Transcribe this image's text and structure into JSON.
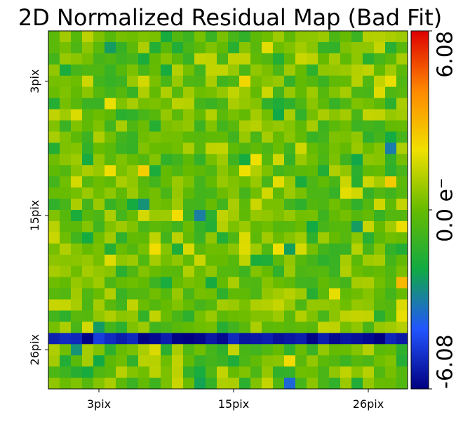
{
  "chart_data": {
    "type": "heatmap",
    "title": "2D Normalized Residual Map (Bad Fit)",
    "grid_size": [
      32,
      32
    ],
    "x_ticks": [
      {
        "pos": 4,
        "label": "3pix"
      },
      {
        "pos": 16,
        "label": "15pix"
      },
      {
        "pos": 28,
        "label": "26pix"
      }
    ],
    "y_ticks": [
      {
        "pos": 4,
        "label": "3pix"
      },
      {
        "pos": 16,
        "label": "15pix"
      },
      {
        "pos": 28,
        "label": "26pix"
      }
    ],
    "colorbar": {
      "vmin": -6.08,
      "vmax": 6.08,
      "label_min": "-6.08",
      "label_max": "6.08",
      "label_mid": "0.0 e⁻",
      "colors": [
        "#000080",
        "#2255ff",
        "#11aa44",
        "#66bb00",
        "#f0e000",
        "#ff8800",
        "#dd0000"
      ]
    },
    "notes": "Residuals mostly in approx -2..+2 range; one strongly negative row (approx -5.5) near y = 27.",
    "bad_row_index": 27,
    "bad_row_value": -5.6
  }
}
